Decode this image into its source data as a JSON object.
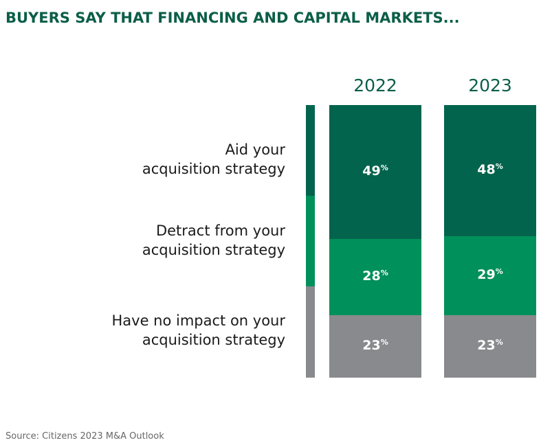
{
  "title": "BUYERS SAY THAT FINANCING AND CAPITAL MARKETS...",
  "source": "Source: Citizens 2023 M&A Outlook",
  "chart_data": {
    "type": "bar",
    "stacked": true,
    "categories": [
      "2022",
      "2023"
    ],
    "series": [
      {
        "name_lines": [
          "Aid your",
          "acquisition strategy"
        ],
        "values": [
          49,
          48
        ],
        "color": "#03644d"
      },
      {
        "name_lines": [
          "Detract from your",
          "acquisition strategy"
        ],
        "values": [
          28,
          29
        ],
        "color": "#00905b"
      },
      {
        "name_lines": [
          "Have no impact on your",
          "acquisition strategy"
        ],
        "values": [
          23,
          23
        ],
        "color": "#898a8e"
      }
    ],
    "value_suffix": "%",
    "ylim": [
      0,
      100
    ]
  }
}
